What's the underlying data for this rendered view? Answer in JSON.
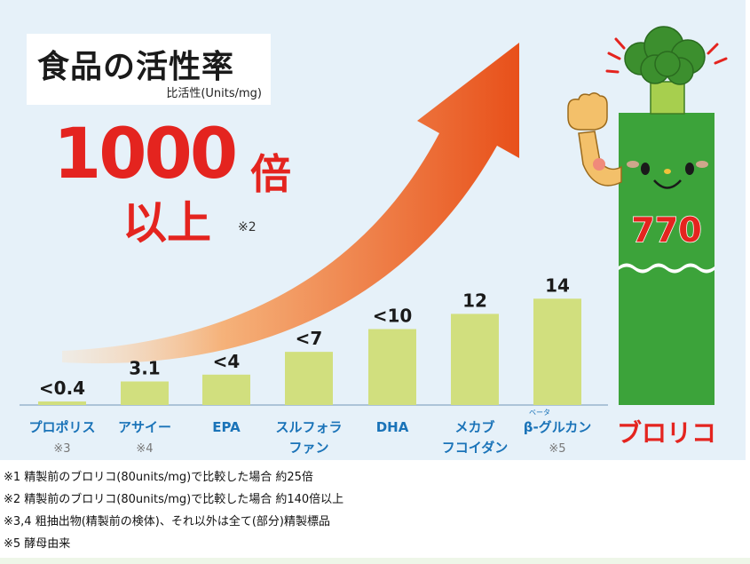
{
  "title": "食品の活性率",
  "subtitle": "比活性(Units/mg)",
  "headline": {
    "main": "1000",
    "unit": "倍",
    "line2": "以上",
    "note": "※2"
  },
  "chart_data": {
    "type": "bar",
    "categories": [
      {
        "label": "プロポリス",
        "note": "※3",
        "value_label": "<0.4"
      },
      {
        "label": "アサイー",
        "note": "※4",
        "value_label": "3.1"
      },
      {
        "label": "EPA",
        "note": "",
        "value_label": "<4"
      },
      {
        "label": "スルフォラファン",
        "label_line1": "スルフォラ",
        "label_line2": "ファン",
        "note": "",
        "value_label": "<7"
      },
      {
        "label": "DHA",
        "note": "",
        "value_label": "<10"
      },
      {
        "label": "メカブフコイダン",
        "label_line1": "メカブ",
        "label_line2": "フコイダン",
        "note": "",
        "value_label": "12"
      },
      {
        "label": "β-グルカン",
        "ruby": "ベータ",
        "note": "※5",
        "value_label": "14"
      },
      {
        "label": "ブロリコ",
        "note": "",
        "value_label": "770"
      }
    ],
    "values": [
      0.4,
      3.1,
      4,
      7,
      10,
      12,
      14,
      770
    ],
    "ylabel": "比活性(Units/mg)",
    "axis_broken": true,
    "grid": false,
    "colors": {
      "bar": "#d1df7e",
      "highlight_bar": "#3ca33a",
      "highlight_value": "#e4241f",
      "highlight_label": "#e4241f",
      "category_label": "#1a73b8",
      "arrow": "#ea5a1e",
      "panel_background": "#e6f1f9"
    }
  },
  "mascot": {
    "icon": "broccoli-mascot-icon"
  },
  "footnotes": [
    "※1 精製前のブロリコ(80units/mg)で比較した場合 約25倍",
    "※2 精製前のブロリコ(80units/mg)で比較した場合 約140倍以上",
    "※3,4 粗抽出物(精製前の検体)、それ以外は全て(部分)精製標品",
    "※5 酵母由来"
  ]
}
